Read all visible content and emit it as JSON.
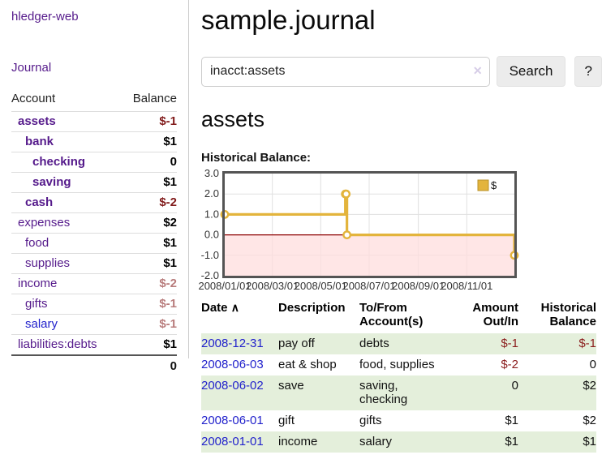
{
  "app": {
    "title": "hledger-web"
  },
  "sidebar": {
    "journal_link": "Journal",
    "accounts_table": {
      "headers": {
        "account": "Account",
        "balance": "Balance"
      },
      "rows": [
        {
          "name": "assets",
          "balance": "$-1",
          "indent": 1,
          "bold": true,
          "balance_class": "neg",
          "link_class": ""
        },
        {
          "name": "bank",
          "balance": "$1",
          "indent": 2,
          "bold": true,
          "balance_class": "pos",
          "link_class": ""
        },
        {
          "name": "checking",
          "balance": "0",
          "indent": 3,
          "bold": true,
          "balance_class": "pos",
          "link_class": ""
        },
        {
          "name": "saving",
          "balance": "$1",
          "indent": 3,
          "bold": true,
          "balance_class": "pos",
          "link_class": ""
        },
        {
          "name": "cash",
          "balance": "$-2",
          "indent": 2,
          "bold": true,
          "balance_class": "neg",
          "link_class": ""
        },
        {
          "name": "expenses",
          "balance": "$2",
          "indent": 1,
          "bold": false,
          "balance_class": "pos",
          "link_class": ""
        },
        {
          "name": "food",
          "balance": "$1",
          "indent": 2,
          "bold": false,
          "balance_class": "pos",
          "link_class": ""
        },
        {
          "name": "supplies",
          "balance": "$1",
          "indent": 2,
          "bold": false,
          "balance_class": "pos",
          "link_class": ""
        },
        {
          "name": "income",
          "balance": "$-2",
          "indent": 1,
          "bold": false,
          "balance_class": "negsoft",
          "link_class": ""
        },
        {
          "name": "gifts",
          "balance": "$-1",
          "indent": 2,
          "bold": false,
          "balance_class": "negsoft",
          "link_class": ""
        },
        {
          "name": "salary",
          "balance": "$-1",
          "indent": 2,
          "bold": false,
          "balance_class": "negsoft",
          "link_class": "blue"
        },
        {
          "name": "liabilities:debts",
          "balance": "$1",
          "indent": 1,
          "bold": false,
          "balance_class": "pos",
          "link_class": ""
        }
      ],
      "total": "0"
    }
  },
  "main": {
    "title": "sample.journal",
    "search": {
      "value": "inacct:assets",
      "clear_icon": "✕",
      "search_button": "Search",
      "help_button": "?"
    },
    "account_heading": "assets",
    "chart_title": "Historical Balance:"
  },
  "chart_data": {
    "type": "line",
    "style": "step",
    "title": "Historical Balance",
    "series": [
      {
        "name": "$",
        "color": "#e3b43c",
        "points": [
          [
            "2008-01-01",
            1
          ],
          [
            "2008-06-01",
            2
          ],
          [
            "2008-06-02",
            2
          ],
          [
            "2008-06-03",
            0
          ],
          [
            "2008-12-31",
            -1
          ]
        ]
      }
    ],
    "x_range": [
      "2008-01-01",
      "2008-12-31"
    ],
    "x_ticks": [
      "2008/01/01",
      "2008/03/01",
      "2008/05/01",
      "2008/07/01",
      "2008/09/01",
      "2008/11/01"
    ],
    "y_ticks": [
      "3.0",
      "2.0",
      "1.0",
      "0.0",
      "-1.0",
      "-2.0"
    ],
    "ylim": [
      -2,
      3
    ],
    "legend": "$",
    "legend_position": "top-right",
    "grid": true,
    "negative_region_color": "#ffdddd",
    "zero_line_color": "#8b0000"
  },
  "register": {
    "headers": {
      "date": "Date",
      "sort_icon": "∧",
      "description": "Description",
      "accounts": "To/From Account(s)",
      "amount": "Amount Out/In",
      "balance": "Historical Balance"
    },
    "rows": [
      {
        "date": "2008-12-31",
        "description": "pay off",
        "accounts": "debts",
        "amount": "$-1",
        "amount_class": "neg",
        "balance": "$-1",
        "balance_class": "neg"
      },
      {
        "date": "2008-06-03",
        "description": "eat & shop",
        "accounts": "food, supplies",
        "amount": "$-2",
        "amount_class": "neg",
        "balance": "0",
        "balance_class": "pos"
      },
      {
        "date": "2008-06-02",
        "description": "save",
        "accounts": "saving, checking",
        "amount": "0",
        "amount_class": "pos",
        "balance": "$2",
        "balance_class": "pos"
      },
      {
        "date": "2008-06-01",
        "description": "gift",
        "accounts": "gifts",
        "amount": "$1",
        "amount_class": "pos",
        "balance": "$2",
        "balance_class": "pos"
      },
      {
        "date": "2008-01-01",
        "description": "income",
        "accounts": "salary",
        "amount": "$1",
        "amount_class": "pos",
        "balance": "$1",
        "balance_class": "pos"
      }
    ]
  }
}
